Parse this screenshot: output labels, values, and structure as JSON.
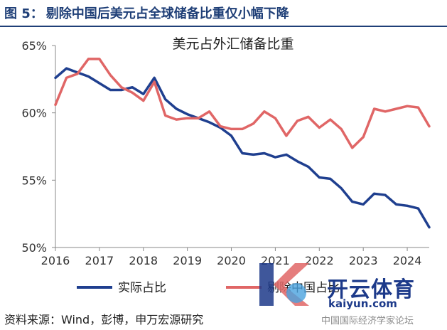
{
  "figure": {
    "number": "图 5：",
    "title": "剔除中国后美元占全球储备比重仅小幅下降",
    "source": "资料来源：Wind，彭博，申万宏源研究"
  },
  "watermark": {
    "brand": "开云体育",
    "url": "kaiyun.com",
    "sub": "中国国际经济学家论坛"
  },
  "colors": {
    "series_actual": "#1f3f8f",
    "series_ex_china": "#e06666",
    "axis": "#888888"
  },
  "chart_data": {
    "type": "line",
    "title": "美元占外汇储备比重",
    "xlabel": "",
    "ylabel": "",
    "x_ticks": [
      "2016",
      "2017",
      "2018",
      "2019",
      "2020",
      "2021",
      "2022",
      "2023",
      "2024"
    ],
    "y_ticks": [
      "50%",
      "55%",
      "60%",
      "65%"
    ],
    "xlim": [
      2016,
      2024.5
    ],
    "ylim": [
      50,
      65
    ],
    "grid": false,
    "legend_position": "bottom",
    "x": [
      2016.0,
      2016.25,
      2016.5,
      2016.75,
      2017.0,
      2017.25,
      2017.5,
      2017.75,
      2018.0,
      2018.25,
      2018.5,
      2018.75,
      2019.0,
      2019.25,
      2019.5,
      2019.75,
      2020.0,
      2020.25,
      2020.5,
      2020.75,
      2021.0,
      2021.25,
      2021.5,
      2021.75,
      2022.0,
      2022.25,
      2022.5,
      2022.75,
      2023.0,
      2023.25,
      2023.5,
      2023.75,
      2024.0,
      2024.25,
      2024.5
    ],
    "series": [
      {
        "name": "实际占比",
        "color_key": "series_actual",
        "values": [
          62.6,
          63.3,
          63.0,
          62.7,
          62.2,
          61.7,
          61.7,
          61.9,
          61.4,
          62.6,
          61.0,
          60.3,
          59.9,
          59.6,
          59.3,
          58.9,
          58.3,
          57.0,
          56.9,
          57.0,
          56.7,
          56.9,
          56.4,
          56.0,
          55.2,
          55.1,
          54.4,
          53.4,
          53.2,
          54.0,
          53.9,
          53.2,
          53.1,
          52.9,
          51.5
        ]
      },
      {
        "name": "剔除中国占比",
        "color_key": "series_ex_china",
        "values": [
          60.6,
          62.6,
          62.9,
          64.0,
          64.0,
          62.8,
          61.9,
          61.5,
          60.9,
          62.3,
          59.8,
          59.5,
          59.6,
          59.6,
          60.1,
          59.0,
          58.8,
          58.8,
          59.2,
          60.1,
          59.6,
          58.3,
          59.4,
          59.7,
          58.9,
          59.5,
          58.8,
          57.4,
          58.2,
          60.3,
          60.1,
          60.3,
          60.5,
          60.4,
          59.0
        ]
      }
    ]
  }
}
